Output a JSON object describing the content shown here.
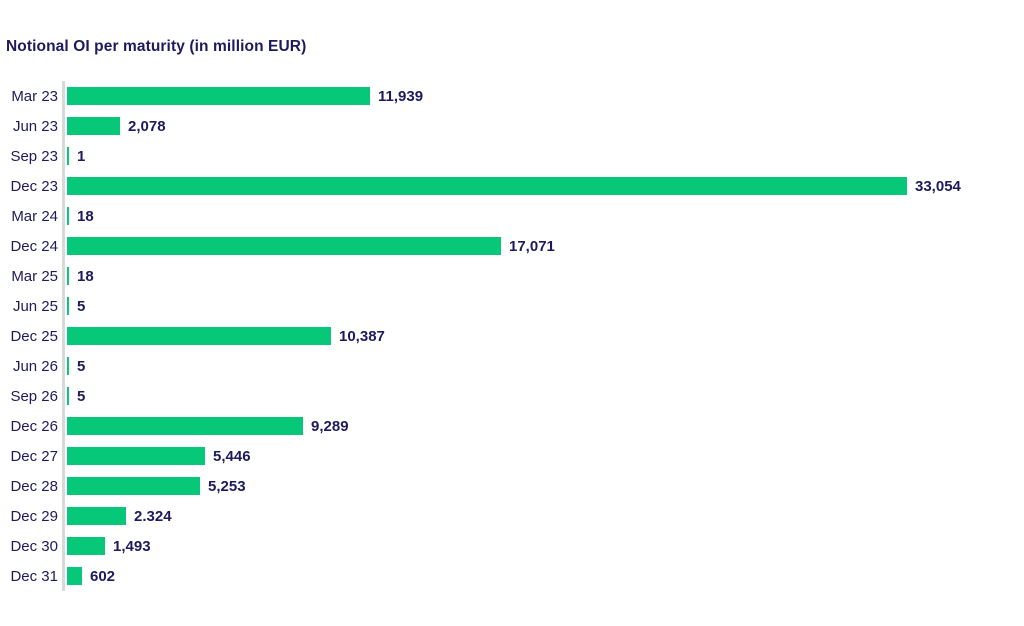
{
  "title": "Notional OI per maturity (in million EUR)",
  "colors": {
    "bar": "#06c878",
    "text": "#1e1a5e",
    "axis": "#d9d9d9",
    "background": "#ffffff"
  },
  "chart_data": {
    "type": "bar",
    "orientation": "horizontal",
    "title": "Notional OI per maturity (in million EUR)",
    "categories": [
      "Mar 23",
      "Jun 23",
      "Sep 23",
      "Dec 23",
      "Mar 24",
      "Dec 24",
      "Mar 25",
      "Jun 25",
      "Dec 25",
      "Jun 26",
      "Sep 26",
      "Dec 26",
      "Dec 27",
      "Dec 28",
      "Dec 29",
      "Dec 30",
      "Dec 31"
    ],
    "values": [
      11939,
      2078,
      1,
      33054,
      18,
      17071,
      18,
      5,
      10387,
      5,
      5,
      9289,
      5446,
      5253,
      2324,
      1493,
      602
    ],
    "value_labels": [
      "11,939",
      "2,078",
      "1",
      "33,054",
      "18",
      "17,071",
      "18",
      "5",
      "10,387",
      "5",
      "5",
      "9,289",
      "5,446",
      "5,253",
      "2.324",
      "1,493",
      "602"
    ],
    "xlabel": "",
    "ylabel": "",
    "xlim": [
      0,
      33054
    ],
    "grid": false,
    "legend": "none",
    "data_labels": "end-of-bar"
  }
}
